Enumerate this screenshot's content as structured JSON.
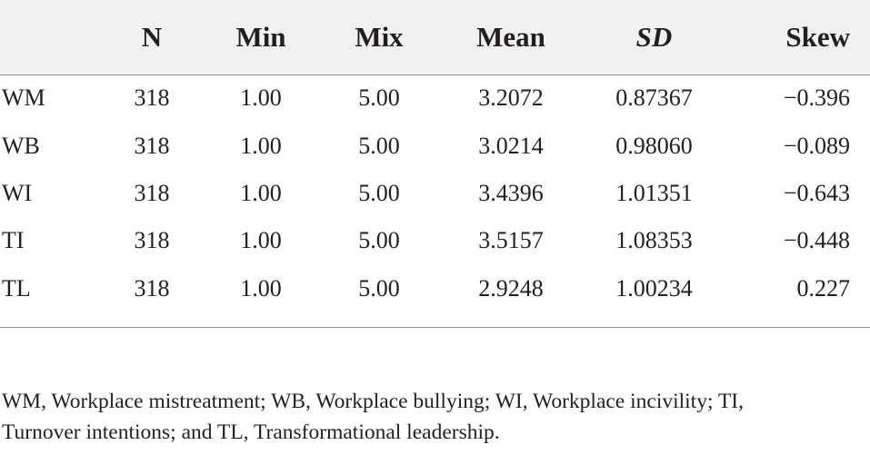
{
  "table": {
    "columns": [
      "",
      "N",
      "Min",
      "Mix",
      "Mean",
      "SD",
      "Skew"
    ],
    "rows": [
      {
        "label": "WM",
        "n": "318",
        "min": "1.00",
        "mix": "5.00",
        "mean": "3.2072",
        "sd": "0.87367",
        "skew": "−0.396"
      },
      {
        "label": "WB",
        "n": "318",
        "min": "1.00",
        "mix": "5.00",
        "mean": "3.0214",
        "sd": "0.98060",
        "skew": "−0.089"
      },
      {
        "label": "WI",
        "n": "318",
        "min": "1.00",
        "mix": "5.00",
        "mean": "3.4396",
        "sd": "1.01351",
        "skew": "−0.643"
      },
      {
        "label": "TI",
        "n": "318",
        "min": "1.00",
        "mix": "5.00",
        "mean": "3.5157",
        "sd": "1.08353",
        "skew": "−0.448"
      },
      {
        "label": "TL",
        "n": "318",
        "min": "1.00",
        "mix": "5.00",
        "mean": "2.9248",
        "sd": "1.00234",
        "skew": "0.227"
      }
    ]
  },
  "footnote": {
    "line1": "WM, Workplace mistreatment; WB, Workplace bullying; WI, Workplace incivility; TI,",
    "line2": "Turnover intentions; and TL, Transformational leadership."
  }
}
